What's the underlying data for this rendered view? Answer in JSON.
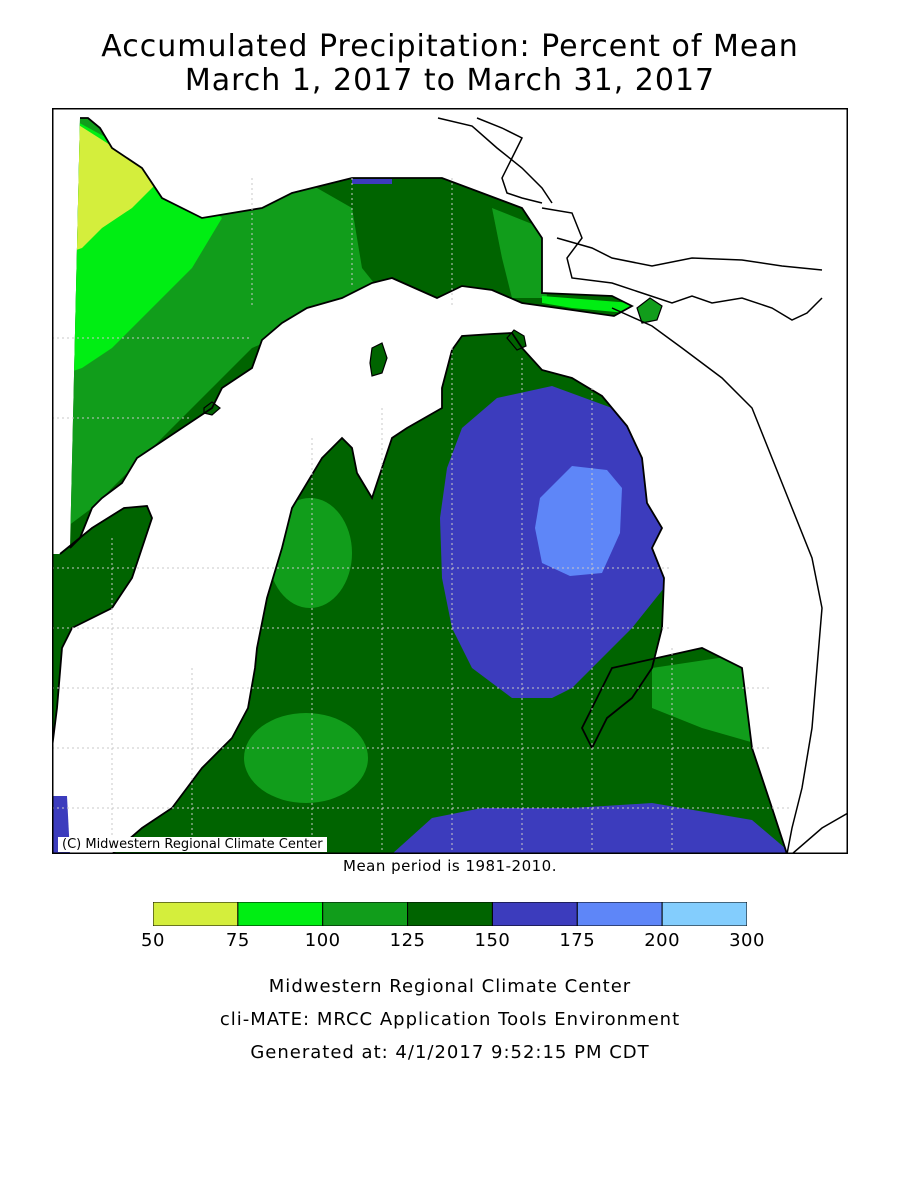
{
  "title": {
    "line1": "Accumulated Precipitation: Percent of Mean",
    "line2": "March 1, 2017 to March 31, 2017"
  },
  "map": {
    "region": "Michigan",
    "copyright": "(C) Midwestern Regional Climate Center",
    "mean_note": "Mean period is 1981-2010."
  },
  "legend": {
    "ticks": [
      "50",
      "75",
      "100",
      "125",
      "150",
      "175",
      "200",
      "300"
    ],
    "bins": [
      {
        "range": "50-75",
        "color": "#d4ee3c"
      },
      {
        "range": "75-100",
        "color": "#00ee13"
      },
      {
        "range": "100-125",
        "color": "#119d1b"
      },
      {
        "range": "125-150",
        "color": "#006400"
      },
      {
        "range": "150-175",
        "color": "#3c3cbd"
      },
      {
        "range": "175-200",
        "color": "#5e86f8"
      },
      {
        "range": "200-300",
        "color": "#83cdfd"
      }
    ]
  },
  "footer": {
    "line1": "Midwestern Regional Climate Center",
    "line2": "cli-MATE: MRCC Application Tools Environment",
    "line3": "Generated at: 4/1/2017 9:52:15 PM CDT"
  }
}
